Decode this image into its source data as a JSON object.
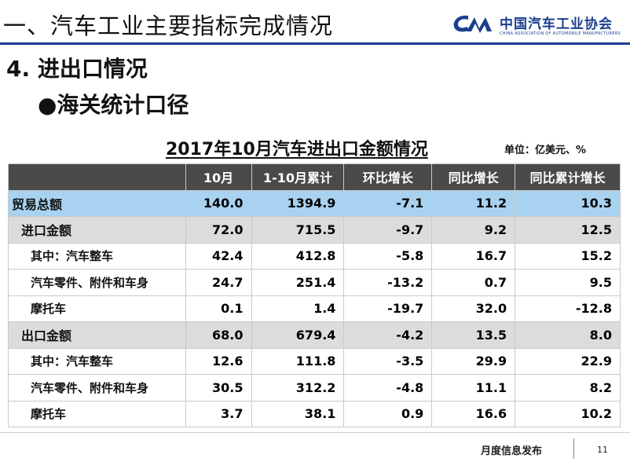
{
  "header": {
    "section_title": "一、汽车工业主要指标完成情况",
    "logo_cn": "中国汽车工业协会",
    "logo_en": "CHINA ASSOCIATION OF AUTOMOBILE MANUFACTURERS",
    "accent_color": "#1b3f8f"
  },
  "content": {
    "heading": "4. 进出口情况",
    "bullet": "●海关统计口径",
    "table_title": "2017年10月汽车进出口金额情况",
    "unit": "单位：亿美元、%"
  },
  "table": {
    "columns": [
      "",
      "10月",
      "1-10月累计",
      "环比增长",
      "同比增长",
      "同比累计增长"
    ],
    "rows": [
      {
        "type": "total",
        "label": "贸易总额",
        "values": [
          "140.0",
          "1394.9",
          "-7.1",
          "11.2",
          "10.3"
        ]
      },
      {
        "type": "sub",
        "label": "进口金额",
        "values": [
          "72.0",
          "715.5",
          "-9.7",
          "9.2",
          "12.5"
        ]
      },
      {
        "type": "detail",
        "label": "其中：汽车整车",
        "values": [
          "42.4",
          "412.8",
          "-5.8",
          "16.7",
          "15.2"
        ]
      },
      {
        "type": "detail",
        "label": "汽车零件、附件和车身",
        "values": [
          "24.7",
          "251.4",
          "-13.2",
          "0.7",
          "9.5"
        ]
      },
      {
        "type": "detail",
        "label": "摩托车",
        "values": [
          "0.1",
          "1.4",
          "-19.7",
          "32.0",
          "-12.8"
        ]
      },
      {
        "type": "sub",
        "label": "出口金额",
        "values": [
          "68.0",
          "679.4",
          "-4.2",
          "13.5",
          "8.0"
        ]
      },
      {
        "type": "detail",
        "label": "其中：汽车整车",
        "values": [
          "12.6",
          "111.8",
          "-3.5",
          "29.9",
          "22.9"
        ]
      },
      {
        "type": "detail",
        "label": "汽车零件、附件和车身",
        "values": [
          "30.5",
          "312.2",
          "-4.8",
          "11.1",
          "8.2"
        ]
      },
      {
        "type": "detail",
        "label": "摩托车",
        "values": [
          "3.7",
          "38.1",
          "0.9",
          "16.6",
          "10.2"
        ]
      }
    ],
    "colors": {
      "header": "#4a4a4a",
      "total_row": "#a8d2f0",
      "sub_row": "#dcdcdc"
    }
  },
  "footer": {
    "text": "月度信息发布",
    "page": "11"
  }
}
